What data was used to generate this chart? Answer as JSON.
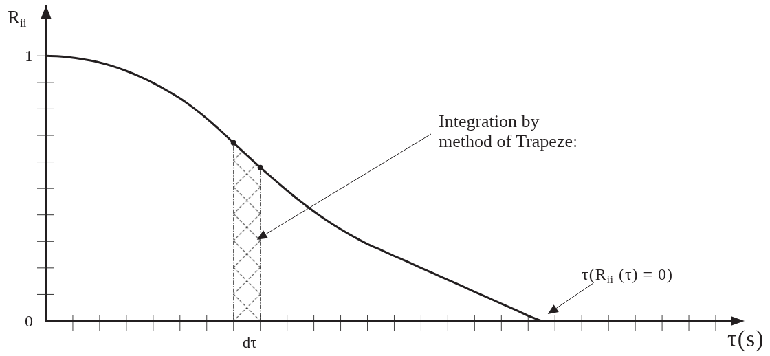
{
  "chart_data": {
    "type": "line",
    "xlabel": "τ(s)",
    "ylabel": "R$_{ii}$",
    "categories": [
      null,
      null,
      null,
      null,
      null,
      null,
      null,
      null,
      null,
      null,
      null,
      null,
      null,
      null,
      null,
      null,
      null,
      null,
      null,
      null,
      null,
      null,
      null,
      null,
      null,
      null,
      null,
      null,
      null,
      null,
      null,
      null,
      null,
      null,
      null,
      null,
      null,
      null,
      null,
      null,
      null,
      null,
      null,
      null,
      null,
      null,
      null,
      null,
      null,
      null,
      null
    ],
    "ylim": [
      0,
      1.19
    ],
    "yticks": [
      0,
      {
        "value": 0.1,
        "label": null
      },
      {
        "value": 0.2,
        "label": null
      },
      {
        "value": 0.3,
        "label": null
      },
      {
        "value": 0.4,
        "label": null
      },
      {
        "value": 0.5,
        "label": null
      },
      {
        "value": 0.6,
        "label": null
      },
      {
        "value": 0.7,
        "label": null
      },
      {
        "value": 0.8,
        "label": null
      },
      {
        "value": 0.9,
        "label": null
      },
      1
    ],
    "series": [
      {
        "color": "#231f20",
        "values": [
          1,
          0.998,
          0.993,
          0.985,
          0.975,
          0.961,
          0.943,
          0.922,
          0.898,
          0.87,
          0.84,
          0.804,
          0.764,
          0.719,
          0.672,
          0.625,
          0.579,
          0.535,
          0.492,
          0.451,
          0.413,
          0.378,
          0.346,
          0.317,
          0.29,
          0.268,
          0.245,
          0.223,
          0.2,
          0.178,
          0.155,
          0.133,
          0.11,
          0.088,
          0.065,
          0.043,
          0.02,
          0,
          null,
          null,
          null,
          null,
          null,
          null,
          null,
          null,
          null,
          null,
          null,
          null,
          null
        ]
      },
      {
        "type": "area",
        "color": "#333333",
        "line_style": "dashed",
        "values": [
          null,
          null,
          null,
          null,
          null,
          null,
          null,
          null,
          null,
          null,
          null,
          null,
          null,
          null,
          0.672,
          0.625,
          0.579,
          null,
          null,
          null,
          null,
          null,
          null,
          null,
          null,
          null,
          null,
          null,
          null,
          null,
          null,
          null,
          null,
          null,
          null,
          null,
          null,
          null,
          null,
          null,
          null,
          null,
          null,
          null,
          null,
          null,
          null,
          null,
          null,
          null,
          null
        ]
      },
      {
        "type": "scatter",
        "color": "#231f20",
        "marker": "circle",
        "values": [
          null,
          null,
          null,
          null,
          null,
          null,
          null,
          null,
          null,
          null,
          null,
          null,
          null,
          null,
          0.672,
          null,
          0.579,
          null,
          null,
          null,
          null,
          null,
          null,
          null,
          null,
          null,
          null,
          null,
          null,
          null,
          null,
          null,
          null,
          null,
          null,
          null,
          null,
          null,
          null,
          null,
          null,
          null,
          null,
          null,
          null,
          null,
          null,
          null,
          null,
          null,
          null
        ]
      }
    ],
    "annotations": [
      "Integration by\nmethod of Trapeze:",
      "τ(R$_{ii}$ (τ) = 0)",
      "dτ"
    ]
  }
}
